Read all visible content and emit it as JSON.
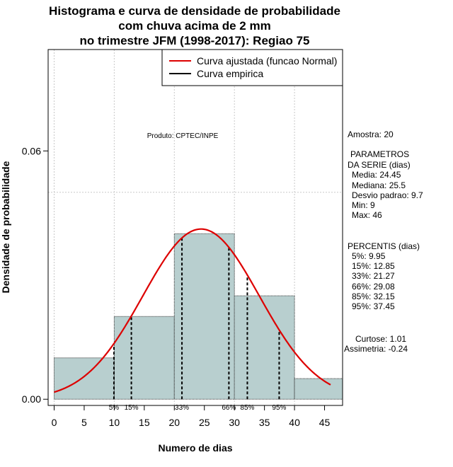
{
  "chart_data": {
    "type": "histogram",
    "title_lines": [
      "Histograma e curva de densidade de probabilidade",
      "com chuva acima de 2 mm",
      "no trimestre JFM (1998-2017): Regiao 75"
    ],
    "xlabel": "Numero de dias",
    "ylabel": "Densidade de probabilidade",
    "xlim": [
      -1,
      48
    ],
    "ylim": [
      -0.0015,
      0.0845
    ],
    "x_ticks": [
      0,
      5,
      10,
      15,
      20,
      25,
      30,
      35,
      40,
      45
    ],
    "x_tick_labels": [
      "0",
      "5",
      "10",
      "15",
      "20",
      "25",
      "30",
      "35",
      "40",
      "45"
    ],
    "y_ticks": [
      0.0,
      0.06
    ],
    "y_tick_labels": [
      "0.00",
      "0.06"
    ],
    "gridlines": {
      "x": [
        0,
        10,
        20,
        30,
        40
      ],
      "y": [
        0.05
      ]
    },
    "bars": [
      {
        "x0": 0,
        "x1": 10,
        "density": 0.01
      },
      {
        "x0": 10,
        "x1": 20,
        "density": 0.02
      },
      {
        "x0": 20,
        "x1": 30,
        "density": 0.04
      },
      {
        "x0": 30,
        "x1": 40,
        "density": 0.025
      },
      {
        "x0": 40,
        "x1": 48,
        "density": 0.005
      }
    ],
    "bar_color": "#b8cfcf",
    "normal_fit": {
      "mean": 24.45,
      "sd": 9.7,
      "x_range": [
        0,
        46
      ],
      "color": "#dd0000"
    },
    "percentile_lines": [
      {
        "label": "5%",
        "value": 9.95
      },
      {
        "label": "15%",
        "value": 12.85
      },
      {
        "label": "33%",
        "value": 21.27
      },
      {
        "label": "66%",
        "value": 29.08
      },
      {
        "label": "85%",
        "value": 32.15
      },
      {
        "label": "95%",
        "value": 37.45
      }
    ],
    "legend": [
      {
        "label": "Curva ajustada (funcao Normal)",
        "color": "#dd0000"
      },
      {
        "label": "Curva empirica",
        "color": "#000000"
      }
    ],
    "legend_position": "top-right",
    "product_label": "Produto: CPTEC/INPE",
    "stats": {
      "sample": "Amostra: 20",
      "parameters_title": [
        "PARAMETROS",
        "DA SERIE (dias)"
      ],
      "parameters": [
        "Media: 24.45",
        "Mediana: 25.5",
        "Desvio padrao: 9.7",
        "Min: 9",
        "Max: 46"
      ],
      "percentiles_title": "PERCENTIS (dias)",
      "percentiles": [
        "5%: 9.95",
        "15%: 12.85",
        "33%: 21.27",
        "66%: 29.08",
        "85%: 32.15",
        "95%: 37.45"
      ],
      "curtose": "Curtose: 1.01",
      "assimetria": "Assimetria: -0.24"
    }
  }
}
